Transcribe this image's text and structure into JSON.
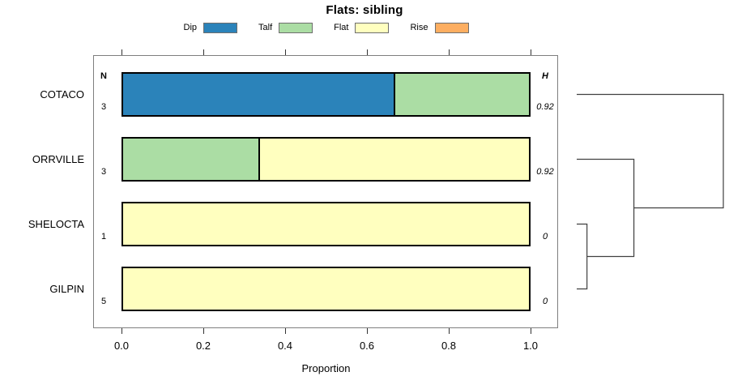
{
  "chart_data": {
    "type": "bar",
    "stacked": true,
    "orientation": "horizontal",
    "title": "Flats: sibling",
    "xlabel": "Proportion",
    "xlim": [
      0,
      1
    ],
    "x_ticks": [
      {
        "label": "0.0",
        "value": 0.0
      },
      {
        "label": "0.2",
        "value": 0.2
      },
      {
        "label": "0.4",
        "value": 0.4
      },
      {
        "label": "0.6",
        "value": 0.6
      },
      {
        "label": "0.8",
        "value": 0.8
      },
      {
        "label": "1.0",
        "value": 1.0
      }
    ],
    "legend": {
      "position": "top",
      "entries": [
        {
          "label": "Dip",
          "color": "#2B83BA"
        },
        {
          "label": "Talf",
          "color": "#ABDDA4"
        },
        {
          "label": "Flat",
          "color": "#FFFFBF"
        },
        {
          "label": "Rise",
          "color": "#FDAE61"
        }
      ]
    },
    "columns": {
      "n_header": "N",
      "h_header": "H"
    },
    "rows": [
      {
        "category": "COTACO",
        "n": "3",
        "h": "0.92",
        "segments": [
          {
            "class": "Dip",
            "value": 0.667
          },
          {
            "class": "Talf",
            "value": 0.333
          }
        ]
      },
      {
        "category": "ORRVILLE",
        "n": "3",
        "h": "0.92",
        "segments": [
          {
            "class": "Talf",
            "value": 0.333
          },
          {
            "class": "Flat",
            "value": 0.667
          }
        ]
      },
      {
        "category": "SHELOCTA",
        "n": "1",
        "h": "0",
        "segments": [
          {
            "class": "Flat",
            "value": 1
          }
        ]
      },
      {
        "category": "GILPIN",
        "n": "5",
        "h": "0",
        "segments": [
          {
            "class": "Flat",
            "value": 1
          }
        ]
      }
    ],
    "dendrogram": {
      "leaf_order": [
        "COTACO",
        "ORRVILLE",
        "SHELOCTA",
        "GILPIN"
      ],
      "merges": [
        {
          "a": "leaf:2",
          "b": "leaf:3",
          "height": 0.07
        },
        {
          "a": "leaf:1",
          "b": "merge:0",
          "height": 0.39
        },
        {
          "a": "leaf:0",
          "b": "merge:1",
          "height": 1.0
        }
      ]
    }
  }
}
